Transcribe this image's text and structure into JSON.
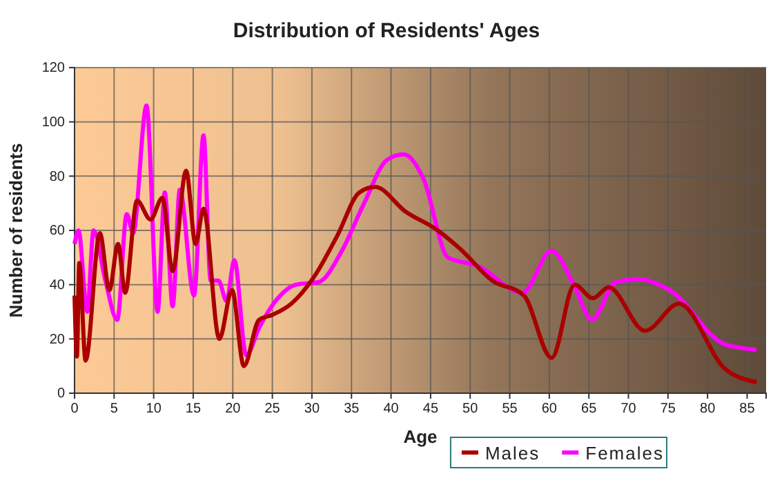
{
  "chart_data": {
    "type": "line",
    "title": "Distribution of Residents' Ages",
    "xlabel": "Age",
    "ylabel": "Number of residents",
    "xlim": [
      0,
      87.4
    ],
    "xticks": [
      0,
      5,
      10,
      15,
      20,
      25,
      30,
      35,
      40,
      45,
      50,
      55,
      60,
      65,
      70,
      75,
      80,
      85
    ],
    "ylim": [
      0,
      120
    ],
    "yticks": [
      0,
      20,
      40,
      60,
      80,
      100,
      120
    ],
    "grid": true,
    "legend": "bottom right",
    "series": [
      {
        "name": "Males",
        "color": "#aa0000",
        "x": [
          0,
          0.3,
          0.6,
          1.4,
          3.2,
          4.4,
          5.5,
          6.4,
          7.9,
          9.6,
          11.1,
          12.4,
          14.1,
          15.3,
          16.3,
          18.3,
          19.9,
          21.4,
          23.3,
          25.1,
          27.4,
          30.3,
          33.2,
          36,
          38,
          41.8,
          45.9,
          48.8,
          52.8,
          56.8,
          60.3,
          63.2,
          65.5,
          67.5,
          72.1,
          76.4,
          82.2,
          86.2
        ],
        "values": [
          36,
          13.5,
          48,
          12,
          59,
          38,
          55,
          37,
          71,
          64,
          72,
          45,
          82,
          55,
          68,
          20,
          38,
          10,
          27,
          29,
          33,
          43,
          58,
          74,
          76,
          67,
          60,
          53,
          41.5,
          36,
          13,
          40,
          35,
          39,
          23,
          33,
          9,
          4
        ]
      },
      {
        "name": "Females",
        "color": "#ff00ff",
        "x": [
          0,
          0.5,
          1.6,
          2.4,
          3.9,
          5.4,
          6.6,
          7.4,
          9.1,
          10.5,
          11.4,
          12.4,
          13.3,
          15.1,
          16.3,
          17.2,
          18.2,
          19.2,
          20.2,
          21.7,
          23.4,
          25.7,
          28,
          30.9,
          33.7,
          36.6,
          39.5,
          41.6,
          44.1,
          47.2,
          50.9,
          56.6,
          60.3,
          63.1,
          65.4,
          68.3,
          71.2,
          75.2,
          82.2,
          86.2
        ],
        "values": [
          55,
          60,
          30,
          60,
          41.5,
          27,
          66,
          59,
          106,
          30,
          74,
          32,
          75,
          36,
          95,
          41.5,
          41.5,
          34,
          49,
          14,
          24.5,
          35,
          40,
          41,
          52,
          70,
          86,
          88,
          79,
          50,
          47,
          37,
          52.5,
          40,
          27,
          40.7,
          42,
          38,
          18,
          16
        ]
      }
    ]
  }
}
